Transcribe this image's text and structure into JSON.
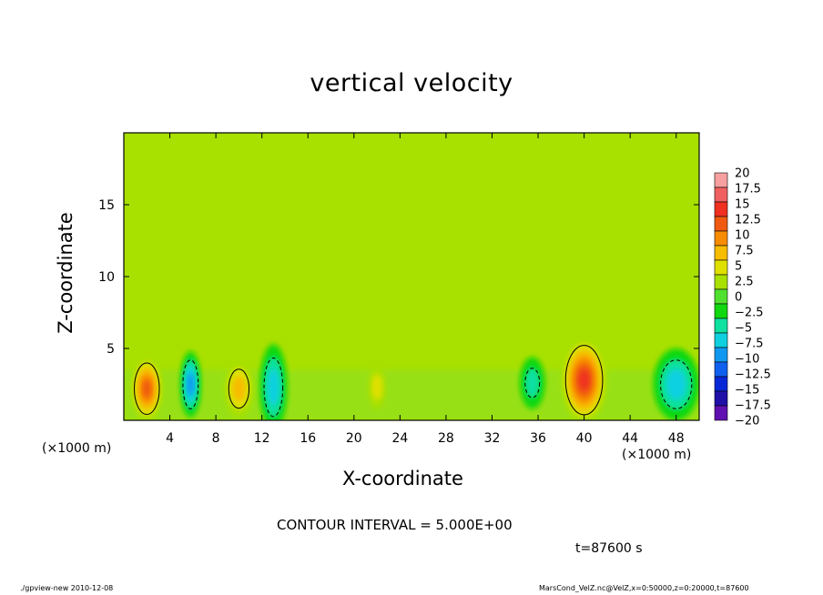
{
  "chart_data": {
    "type": "heatmap",
    "title": "vertical velocity",
    "xlabel": "X-coordinate",
    "ylabel": "Z-coordinate",
    "x_unit_label_left": "(×1000 m)",
    "x_unit_label_right": "(×1000 m)",
    "xlim": [
      0,
      50
    ],
    "ylim": [
      0,
      20
    ],
    "x_ticks": [
      4,
      8,
      12,
      16,
      20,
      24,
      28,
      32,
      36,
      40,
      44,
      48
    ],
    "y_ticks": [
      5,
      10,
      15
    ],
    "contour_interval_text": "CONTOUR INTERVAL = 5.000E+00",
    "time_text": "t=87600 s",
    "colorbar": {
      "levels": [
        "20",
        "17.5",
        "15",
        "12.5",
        "10",
        "7.5",
        "5",
        "2.5",
        "0",
        "−2.5",
        "−5",
        "−7.5",
        "−10",
        "−12.5",
        "−15",
        "−17.5",
        "−20"
      ],
      "colors": [
        "#f8a0a0",
        "#f06060",
        "#f03020",
        "#f05a10",
        "#f88c00",
        "#f8bc00",
        "#e0e000",
        "#a8e000",
        "#50e030",
        "#10d810",
        "#10e0a0",
        "#10d0e0",
        "#1098f0",
        "#1060f0",
        "#0828d8",
        "#2010a8",
        "#6010b0"
      ]
    },
    "cells": [
      {
        "x": 2,
        "z": 2.2,
        "rx": 1.4,
        "rz": 2.3,
        "value": 12
      },
      {
        "x": 5.8,
        "z": 2.5,
        "rx": 0.9,
        "rz": 2.3,
        "value": -9
      },
      {
        "x": 10,
        "z": 2.2,
        "rx": 1.3,
        "rz": 2.0,
        "value": 7
      },
      {
        "x": 13,
        "z": 2.3,
        "rx": 1.2,
        "rz": 3.0,
        "value": -7
      },
      {
        "x": 22,
        "z": 2.3,
        "rx": 0.8,
        "rz": 1.5,
        "value": 3
      },
      {
        "x": 35.5,
        "z": 2.6,
        "rx": 1.1,
        "rz": 1.8,
        "value": -5
      },
      {
        "x": 40,
        "z": 2.8,
        "rx": 2.0,
        "rz": 3.0,
        "value": 13
      },
      {
        "x": 48,
        "z": 2.5,
        "rx": 2.0,
        "rz": 2.5,
        "value": -6
      }
    ]
  },
  "footer": {
    "left": "./gpview-new  2010-12-08",
    "right": "MarsCond_VelZ.nc@VelZ,x=0:50000,z=0:20000,t=87600"
  }
}
